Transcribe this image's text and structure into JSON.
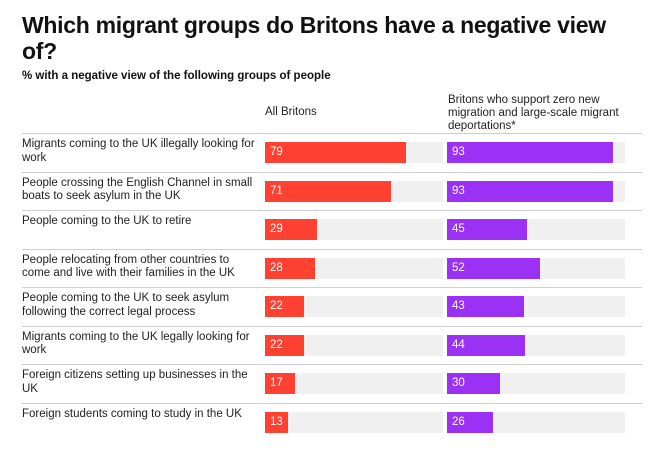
{
  "title": "Which migrant groups do Britons have a negative view of?",
  "subtitle": "% with a negative view of the following groups of people",
  "chart_data": {
    "type": "bar",
    "orientation": "horizontal",
    "title": "Which migrant groups do Britons have a negative view of?",
    "subtitle": "% with a negative view of the following groups of people",
    "xlim": [
      0,
      100
    ],
    "categories": [
      "Migrants coming to the UK illegally looking for work",
      "People crossing the English Channel in small boats to seek asylum in the UK",
      "People coming to the UK to retire",
      "People relocating from other countries to come and live with their families in the UK",
      "People coming to the UK to seek asylum following the correct legal process",
      "Migrants coming to the UK legally looking for work",
      "Foreign citizens setting up businesses in the UK",
      "Foreign students coming to study in the UK"
    ],
    "series": [
      {
        "name": "All Britons",
        "color": "#fe4130",
        "values": [
          79,
          71,
          29,
          28,
          22,
          22,
          17,
          13
        ]
      },
      {
        "name": "Britons who support zero new migration and large-scale migrant deportations*",
        "color": "#9b31f5",
        "values": [
          93,
          93,
          45,
          52,
          43,
          44,
          30,
          26
        ]
      }
    ]
  }
}
